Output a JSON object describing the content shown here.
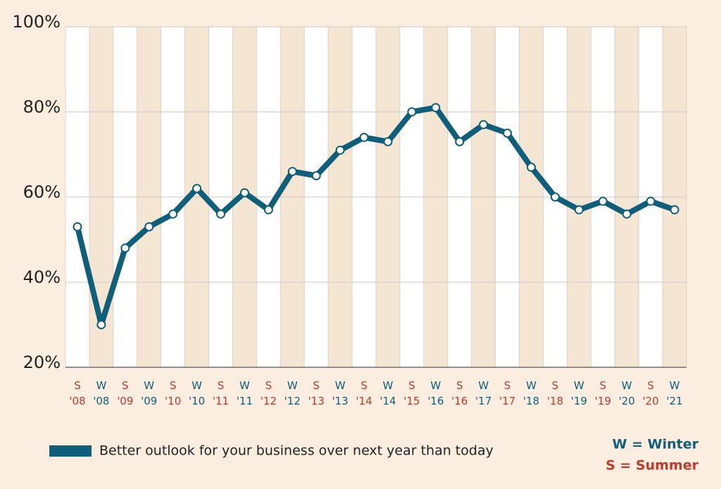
{
  "chart_data": {
    "type": "line",
    "categories": [
      "S '08",
      "W '08",
      "S '09",
      "W '09",
      "S '10",
      "W '10",
      "S '11",
      "W '11",
      "S '12",
      "W '12",
      "S '13",
      "W '13",
      "S '14",
      "W '14",
      "S '15",
      "W '16",
      "S '16",
      "W '17",
      "S '17",
      "W '18",
      "S '18",
      "W '19",
      "S '19",
      "W '20",
      "S '20",
      "W '21"
    ],
    "series": [
      {
        "name": "Better outlook for your business over next year than today",
        "color": "#0f5e7a",
        "values": [
          53,
          30,
          48,
          53,
          56,
          62,
          56,
          61,
          57,
          66,
          65,
          71,
          74,
          73,
          80,
          81,
          73,
          77,
          75,
          67,
          60,
          57,
          59,
          56,
          59,
          57
        ]
      }
    ],
    "ylim": [
      20,
      100
    ],
    "yticks": [
      {
        "value": 20,
        "label": "20%"
      },
      {
        "value": 40,
        "label": "40%"
      },
      {
        "value": 60,
        "label": "60%"
      },
      {
        "value": 80,
        "label": "80%"
      },
      {
        "value": 100,
        "label": "100%"
      }
    ],
    "grid": true,
    "key": [
      {
        "label": "W = Winter",
        "color": "#0f5e7a"
      },
      {
        "label": "S = Summer",
        "color": "#c0392b"
      }
    ]
  }
}
